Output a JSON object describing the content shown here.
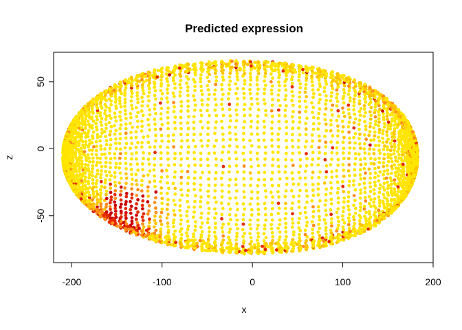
{
  "chart_data": {
    "type": "scatter",
    "title": "Predicted expression",
    "xlabel": "x",
    "ylabel": "z",
    "xlim": [
      -220,
      200
    ],
    "ylim": [
      -85,
      72
    ],
    "xticks": [
      -200,
      -100,
      0,
      100,
      200
    ],
    "yticks": [
      -50,
      0,
      50
    ],
    "grid": false,
    "legend": "none",
    "colors": {
      "low": "#ffe500",
      "mid_low": "#ffc400",
      "mid": "#ff8c1a",
      "high": "#e52a00",
      "max": "#cc0000"
    },
    "series": [
      {
        "values_description_free": true,
        "x_range": [
          -210,
          183
        ],
        "z_range": [
          -78,
          67
        ],
        "point_count_approx": 3500
      }
    ]
  }
}
